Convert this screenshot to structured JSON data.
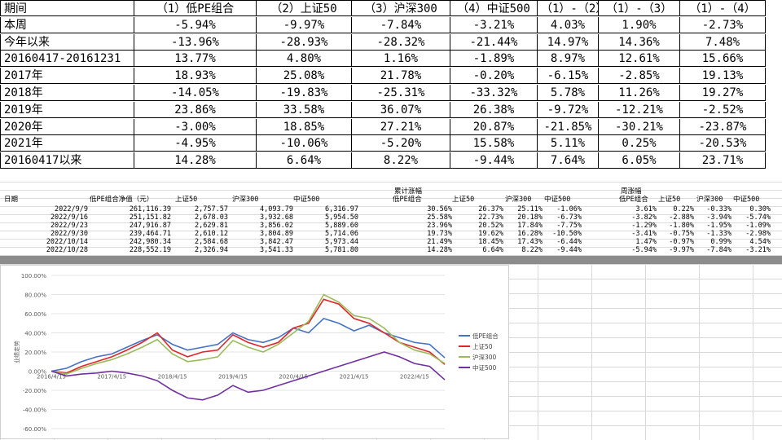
{
  "table1": {
    "header": [
      "期间",
      "（1）低PE组合",
      "（2）上证50",
      "（3）沪深300",
      "（4）中证500",
      "（1）-（2）",
      "（1）-（3）",
      "（1）-（4）"
    ],
    "rows": [
      [
        "本周",
        "-5.94%",
        "-9.97%",
        "-7.84%",
        "-3.21%",
        "4.03%",
        "1.90%",
        "-2.73%"
      ],
      [
        "今年以来",
        "-13.96%",
        "-28.93%",
        "-28.32%",
        "-21.44%",
        "14.97%",
        "14.36%",
        "7.48%"
      ],
      [
        "20160417-20161231",
        "13.77%",
        "4.80%",
        "1.16%",
        "-1.89%",
        "8.97%",
        "12.61%",
        "15.66%"
      ],
      [
        "2017年",
        "18.93%",
        "25.08%",
        "21.78%",
        "-0.20%",
        "-6.15%",
        "-2.85%",
        "19.13%"
      ],
      [
        "2018年",
        "-14.05%",
        "-19.83%",
        "-25.31%",
        "-33.32%",
        "5.78%",
        "11.26%",
        "19.27%"
      ],
      [
        "2019年",
        "23.86%",
        "33.58%",
        "36.07%",
        "26.38%",
        "-9.72%",
        "-12.21%",
        "-2.52%"
      ],
      [
        "2020年",
        "-3.00%",
        "18.85%",
        "27.21%",
        "20.87%",
        "-21.85%",
        "-30.21%",
        "-23.87%"
      ],
      [
        "2021年",
        "-4.95%",
        "-10.06%",
        "-5.20%",
        "15.58%",
        "5.11%",
        "0.25%",
        "-20.53%"
      ],
      [
        "20160417以来",
        "14.28%",
        "6.64%",
        "8.22%",
        "-9.44%",
        "7.64%",
        "6.05%",
        "23.71%"
      ]
    ]
  },
  "table2": {
    "group_headers": [
      "累计涨幅",
      "周涨幅"
    ],
    "header": [
      "日期",
      "低PE组合净值（元）",
      "上证50",
      "沪深300",
      "中证500",
      "低PE组合",
      "上证50",
      "沪深300",
      "中证500",
      "低PE组合",
      "上证50",
      "沪深300",
      "中证500"
    ],
    "rows": [
      [
        "2022/9/9",
        "261,116.39",
        "2,757.57",
        "4,093.79",
        "6,316.97",
        "30.56%",
        "26.37%",
        "25.11%",
        "-1.06%",
        "3.61%",
        "0.22%",
        "-0.33%",
        "0.30%"
      ],
      [
        "2022/9/16",
        "251,151.82",
        "2,678.03",
        "3,932.68",
        "5,954.50",
        "25.58%",
        "22.73%",
        "20.18%",
        "-6.73%",
        "-3.82%",
        "-2.88%",
        "-3.94%",
        "-5.74%"
      ],
      [
        "2022/9/23",
        "247,916.87",
        "2,629.81",
        "3,856.02",
        "5,889.60",
        "23.96%",
        "20.52%",
        "17.84%",
        "-7.75%",
        "-1.29%",
        "-1.80%",
        "-1.95%",
        "-1.09%"
      ],
      [
        "2022/9/30",
        "239,464.71",
        "2,610.12",
        "3,804.89",
        "5,714.06",
        "19.73%",
        "19.62%",
        "16.28%",
        "-10.50%",
        "-3.41%",
        "-0.75%",
        "-1.33%",
        "-2.98%"
      ],
      [
        "2022/10/14",
        "242,980.34",
        "2,584.68",
        "3,842.47",
        "5,973.44",
        "21.49%",
        "18.45%",
        "17.43%",
        "-6.44%",
        "1.47%",
        "-0.97%",
        "0.99%",
        "4.54%"
      ],
      [
        "2022/10/28",
        "228,552.19",
        "2,326.94",
        "3,541.33",
        "5,781.80",
        "14.28%",
        "6.64%",
        "8.22%",
        "-9.44%",
        "-5.94%",
        "-9.97%",
        "-7.84%",
        "-3.21%"
      ]
    ]
  },
  "chart_data": {
    "type": "line",
    "y_label": "业绩走势",
    "categories": [
      "2016/4/15",
      null,
      null,
      null,
      "2017/4/15",
      null,
      null,
      null,
      "2018/4/15",
      null,
      null,
      null,
      "2019/4/15",
      null,
      null,
      null,
      "2020/4/15",
      null,
      null,
      null,
      "2021/4/15",
      null,
      null,
      null,
      "2022/4/15",
      null,
      null
    ],
    "series": [
      {
        "name": "低PE组合",
        "color": "#4472c4",
        "values": [
          0,
          3,
          10,
          15,
          18,
          25,
          32,
          38,
          28,
          22,
          25,
          28,
          40,
          33,
          30,
          35,
          45,
          40,
          55,
          50,
          42,
          48,
          40,
          35,
          30,
          28,
          14
        ]
      },
      {
        "name": "上证50",
        "color": "#e0252b",
        "values": [
          0,
          -2,
          5,
          10,
          15,
          22,
          30,
          40,
          22,
          15,
          20,
          22,
          38,
          30,
          25,
          30,
          45,
          50,
          75,
          70,
          55,
          50,
          40,
          30,
          25,
          20,
          7
        ]
      },
      {
        "name": "沪深300",
        "color": "#9bbb59",
        "values": [
          0,
          -3,
          3,
          8,
          12,
          18,
          25,
          33,
          18,
          10,
          12,
          15,
          32,
          25,
          20,
          28,
          40,
          52,
          80,
          72,
          58,
          55,
          45,
          30,
          22,
          18,
          8
        ]
      },
      {
        "name": "中证500",
        "color": "#7030a0",
        "values": [
          0,
          -5,
          -3,
          -2,
          0,
          -2,
          -5,
          -10,
          -20,
          -28,
          -30,
          -25,
          -15,
          -22,
          -20,
          -15,
          -10,
          -5,
          0,
          5,
          10,
          15,
          20,
          15,
          8,
          5,
          -9
        ]
      }
    ],
    "ylim": [
      -60,
      100
    ],
    "yticks": [
      {
        "value": -60,
        "label": "-60.00%"
      },
      {
        "value": -40,
        "label": "-40.00%"
      },
      {
        "value": -20,
        "label": "-20.00%"
      },
      {
        "value": 0,
        "label": "0.00%"
      },
      {
        "value": 20,
        "label": "20.00%"
      },
      {
        "value": 40,
        "label": "40.00%"
      },
      {
        "value": 60,
        "label": "60.00%"
      },
      {
        "value": 80,
        "label": "80.00%"
      },
      {
        "value": 100,
        "label": "100.00%"
      }
    ],
    "legend": "right"
  }
}
